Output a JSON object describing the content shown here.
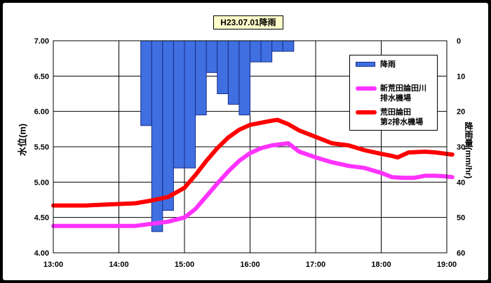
{
  "chart_data": {
    "type": "bar+line",
    "title": "H23.07.01降雨",
    "x_ticks": [
      "13:00",
      "14:00",
      "15:00",
      "16:00",
      "17:00",
      "18:00",
      "19:00"
    ],
    "left_axis": {
      "label": "水位(m)",
      "ticks": [
        "7.00",
        "6.50",
        "6.00",
        "5.50",
        "5.00",
        "4.50",
        "4.00"
      ],
      "ylim": [
        4.0,
        7.0
      ]
    },
    "right_axis": {
      "label": "降雨量(mm/hr)",
      "ticks": [
        "0",
        "10",
        "20",
        "30",
        "40",
        "50",
        "60"
      ],
      "ylim": [
        0,
        60
      ],
      "inverted": true
    },
    "grid": true,
    "rainfall": {
      "name": "降雨",
      "color": "#3f6fe0",
      "time_start": "14:20",
      "interval_min": 10,
      "values": [
        24,
        54,
        48,
        36,
        36,
        21,
        9,
        15,
        18,
        21,
        6,
        6,
        3,
        3
      ]
    },
    "series": [
      {
        "name_lines": [
          "新荒田論田川",
          "排水機場"
        ],
        "color": "#ff33ff",
        "points": [
          [
            "13:00",
            4.38
          ],
          [
            "13:30",
            4.38
          ],
          [
            "14:00",
            4.38
          ],
          [
            "14:15",
            4.38
          ],
          [
            "14:30",
            4.41
          ],
          [
            "14:45",
            4.44
          ],
          [
            "15:00",
            4.5
          ],
          [
            "15:10",
            4.62
          ],
          [
            "15:20",
            4.8
          ],
          [
            "15:30",
            4.98
          ],
          [
            "15:40",
            5.15
          ],
          [
            "15:50",
            5.3
          ],
          [
            "16:00",
            5.41
          ],
          [
            "16:10",
            5.48
          ],
          [
            "16:20",
            5.52
          ],
          [
            "16:30",
            5.54
          ],
          [
            "16:35",
            5.55
          ],
          [
            "16:45",
            5.43
          ],
          [
            "17:00",
            5.35
          ],
          [
            "17:15",
            5.28
          ],
          [
            "17:30",
            5.23
          ],
          [
            "17:45",
            5.2
          ],
          [
            "18:00",
            5.13
          ],
          [
            "18:10",
            5.07
          ],
          [
            "18:20",
            5.06
          ],
          [
            "18:30",
            5.06
          ],
          [
            "18:40",
            5.09
          ],
          [
            "18:50",
            5.09
          ],
          [
            "19:00",
            5.08
          ],
          [
            "19:05",
            5.07
          ]
        ]
      },
      {
        "name_lines": [
          "荒田論田",
          "第2排水機場"
        ],
        "color": "#ff0000",
        "points": [
          [
            "13:00",
            4.67
          ],
          [
            "13:30",
            4.67
          ],
          [
            "13:45",
            4.68
          ],
          [
            "14:00",
            4.69
          ],
          [
            "14:15",
            4.7
          ],
          [
            "14:30",
            4.74
          ],
          [
            "14:45",
            4.79
          ],
          [
            "15:00",
            4.92
          ],
          [
            "15:10",
            5.1
          ],
          [
            "15:20",
            5.3
          ],
          [
            "15:30",
            5.48
          ],
          [
            "15:40",
            5.63
          ],
          [
            "15:50",
            5.74
          ],
          [
            "16:00",
            5.81
          ],
          [
            "16:10",
            5.84
          ],
          [
            "16:20",
            5.87
          ],
          [
            "16:25",
            5.88
          ],
          [
            "16:35",
            5.82
          ],
          [
            "16:45",
            5.73
          ],
          [
            "17:00",
            5.64
          ],
          [
            "17:15",
            5.55
          ],
          [
            "17:30",
            5.52
          ],
          [
            "17:45",
            5.45
          ],
          [
            "18:00",
            5.4
          ],
          [
            "18:10",
            5.37
          ],
          [
            "18:15",
            5.35
          ],
          [
            "18:25",
            5.42
          ],
          [
            "18:40",
            5.43
          ],
          [
            "18:50",
            5.42
          ],
          [
            "19:05",
            5.39
          ]
        ]
      }
    ]
  }
}
